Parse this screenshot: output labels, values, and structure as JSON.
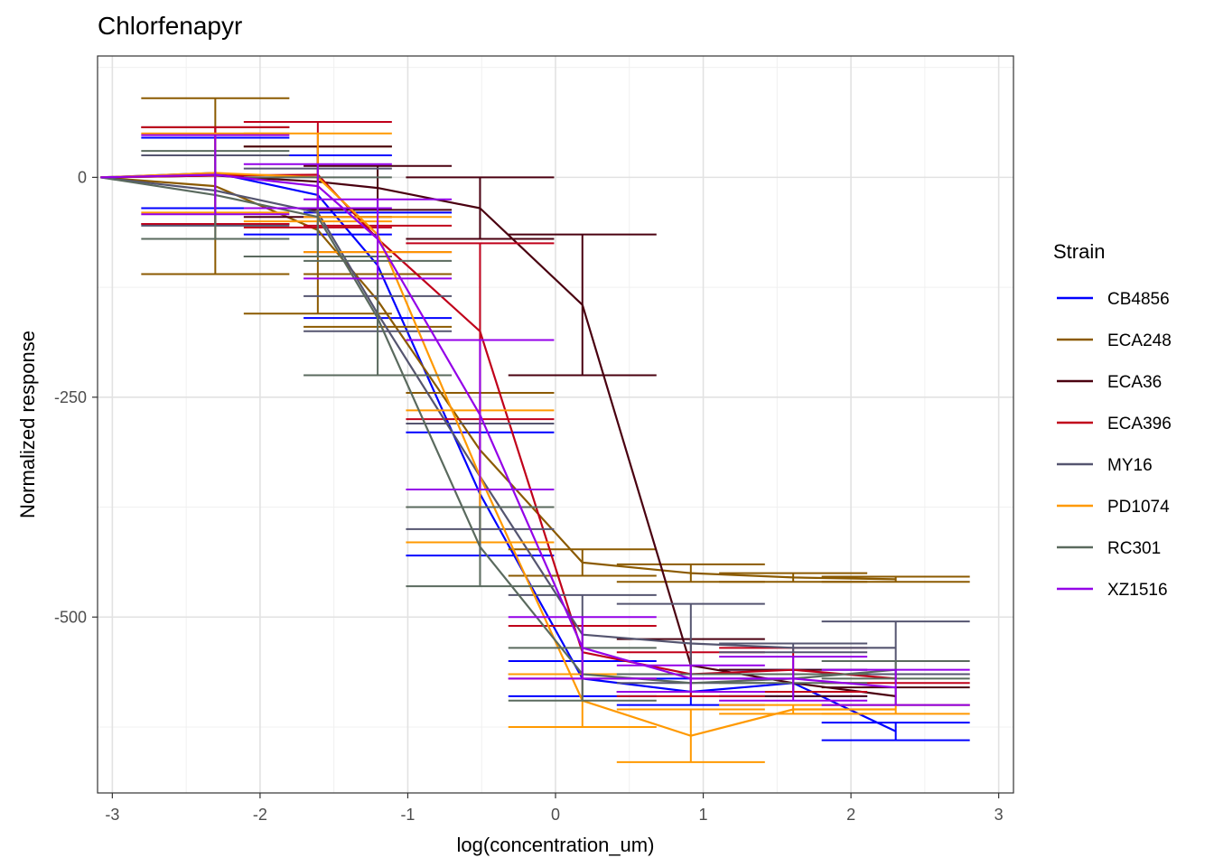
{
  "chart_data": {
    "type": "line",
    "title": "Chlorfenapyr",
    "xlabel": "log(concentration_um)",
    "ylabel": "Normalized response",
    "xlim": [
      -3.1,
      3.1
    ],
    "ylim": [
      -700,
      138
    ],
    "x_ticks": [
      -3,
      -2,
      -1,
      0,
      1,
      2,
      3
    ],
    "x_tick_labels": [
      "-3",
      "-2",
      "-1",
      "0",
      "1",
      "2",
      "3"
    ],
    "y_ticks": [
      0,
      -250,
      -500
    ],
    "y_tick_labels": [
      "0",
      "-250",
      "-500"
    ],
    "grid": true,
    "legend_title": "Strain",
    "legend_position": "right",
    "x": [
      -3.079,
      -2.303,
      -1.609,
      -1.204,
      -0.511,
      0.182,
      0.916,
      1.609,
      2.303
    ],
    "series": [
      {
        "name": "CB4856",
        "color": "#0000FF",
        "values": [
          0,
          5,
          -20,
          -100,
          -360,
          -570,
          -585,
          -575,
          -630
        ],
        "err": [
          0,
          40,
          45,
          60,
          70,
          20,
          15,
          15,
          10
        ]
      },
      {
        "name": "ECA248",
        "color": "#8B5A00",
        "values": [
          0,
          -10,
          -60,
          -140,
          -310,
          -438,
          -450,
          -455,
          -457
        ],
        "err": [
          0,
          100,
          95,
          30,
          65,
          15,
          10,
          5,
          3
        ]
      },
      {
        "name": "ECA36",
        "color": "#4A0010",
        "values": [
          0,
          2,
          -5,
          -12,
          -35,
          -145,
          -555,
          -575,
          -590
        ],
        "err": [
          0,
          55,
          40,
          25,
          35,
          80,
          30,
          15,
          10
        ]
      },
      {
        "name": "ECA396",
        "color": "#C0001A",
        "values": [
          0,
          2,
          3,
          -70,
          -175,
          -540,
          -565,
          -560,
          -570
        ],
        "err": [
          0,
          55,
          60,
          15,
          100,
          30,
          25,
          25,
          5
        ]
      },
      {
        "name": "MY16",
        "color": "#555570",
        "values": [
          0,
          -15,
          -40,
          -155,
          -340,
          -520,
          -530,
          -535,
          -535
        ],
        "err": [
          0,
          40,
          50,
          20,
          60,
          45,
          45,
          5,
          30
        ]
      },
      {
        "name": "PD1074",
        "color": "#FF9900",
        "values": [
          0,
          5,
          0,
          -65,
          -340,
          -595,
          -635,
          -605,
          -605
        ],
        "err": [
          0,
          45,
          50,
          20,
          75,
          30,
          30,
          5,
          5
        ]
      },
      {
        "name": "RC301",
        "color": "#5A6A5E",
        "values": [
          0,
          -20,
          -45,
          -160,
          -420,
          -565,
          -575,
          -570,
          -560
        ],
        "err": [
          0,
          50,
          45,
          65,
          45,
          30,
          10,
          5,
          10
        ]
      },
      {
        "name": "XZ1516",
        "color": "#9400E8",
        "values": [
          0,
          3,
          -10,
          -70,
          -270,
          -535,
          -570,
          -570,
          -580
        ],
        "err": [
          0,
          45,
          25,
          45,
          85,
          35,
          15,
          25,
          20
        ]
      }
    ]
  }
}
